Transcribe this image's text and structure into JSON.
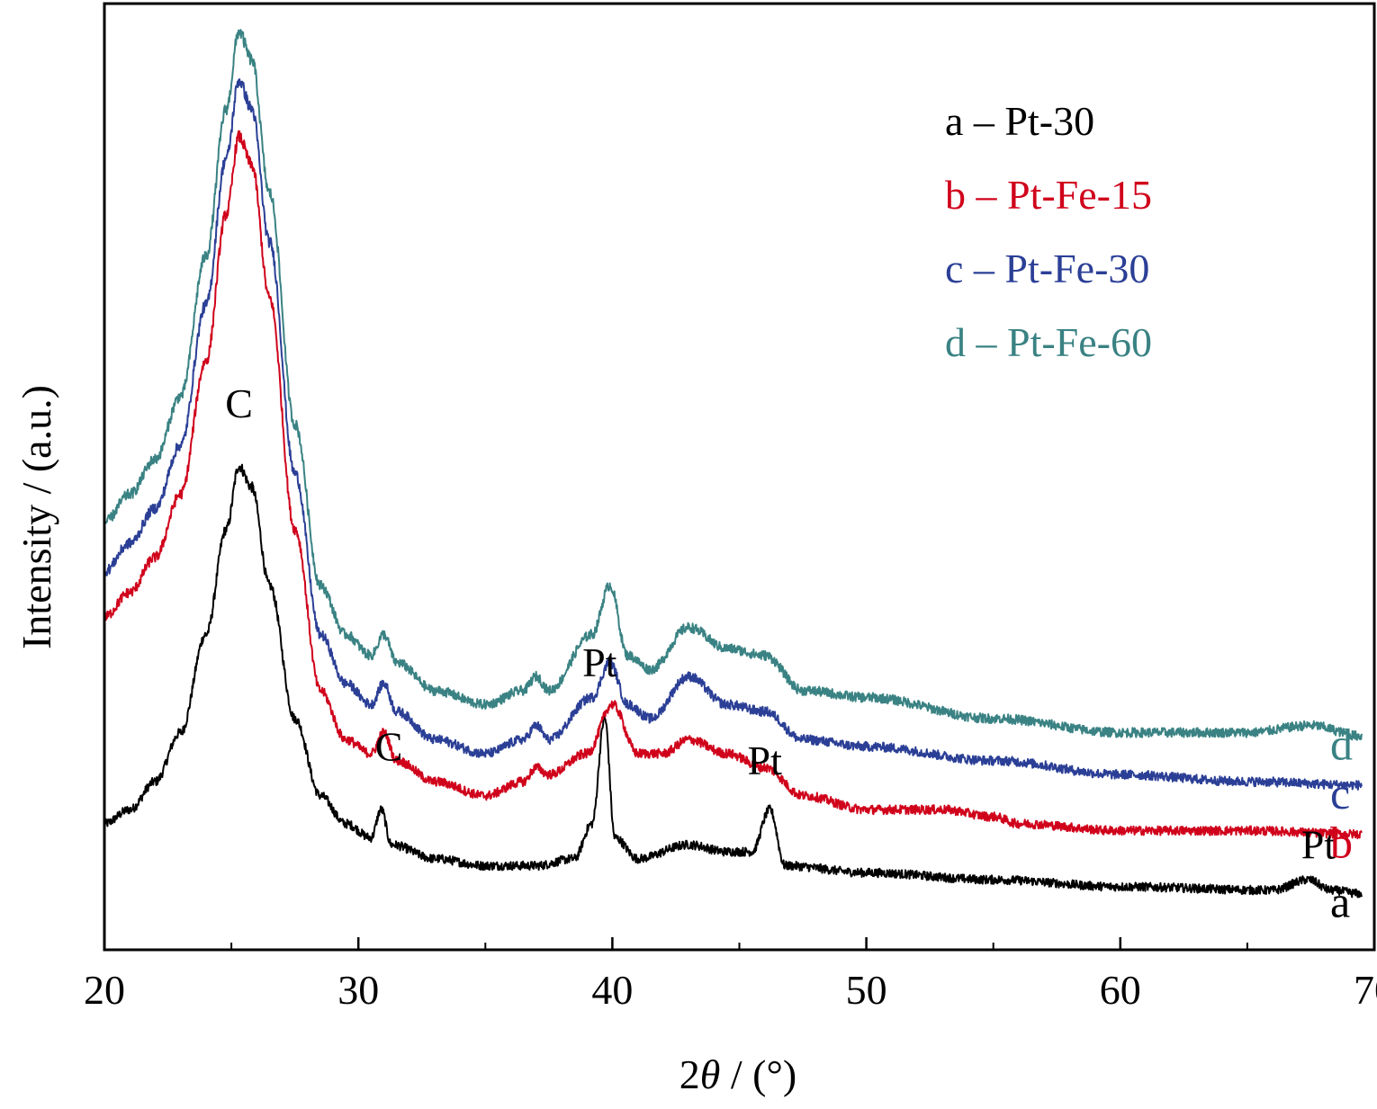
{
  "chart_data": {
    "type": "line",
    "xlabel_prefix": "2",
    "xlabel_symbol": "θ",
    "xlabel_suffix": " / (°)",
    "ylabel": "Intensity / (a.u.)",
    "xlim": [
      20,
      70
    ],
    "xticks": [
      20,
      30,
      40,
      50,
      60,
      70
    ],
    "x_minor_step": 5,
    "yticks_shown": false,
    "grid": false,
    "legend_position": "top-right",
    "legend": [
      {
        "text": "a – Pt-30",
        "series": "a"
      },
      {
        "text": "b – Pt-Fe-15",
        "series": "b"
      },
      {
        "text": "c – Pt-Fe-30",
        "series": "c"
      },
      {
        "text": "d – Pt-Fe-60",
        "series": "d"
      }
    ],
    "series": [
      {
        "name": "a",
        "label": "a",
        "color": "#000000",
        "x_end": 69.5,
        "points": [
          [
            20,
            0.18
          ],
          [
            21,
            0.2
          ],
          [
            22,
            0.24
          ],
          [
            23,
            0.31
          ],
          [
            24,
            0.45
          ],
          [
            24.8,
            0.6
          ],
          [
            25.3,
            0.69
          ],
          [
            25.8,
            0.66
          ],
          [
            26.5,
            0.52
          ],
          [
            27.5,
            0.33
          ],
          [
            28.5,
            0.22
          ],
          [
            29.5,
            0.18
          ],
          [
            30.5,
            0.16
          ],
          [
            30.9,
            0.2
          ],
          [
            31.3,
            0.15
          ],
          [
            33,
            0.13
          ],
          [
            35,
            0.12
          ],
          [
            37,
            0.12
          ],
          [
            38.5,
            0.13
          ],
          [
            39.2,
            0.18
          ],
          [
            39.7,
            0.33
          ],
          [
            40.1,
            0.16
          ],
          [
            41,
            0.13
          ],
          [
            43,
            0.15
          ],
          [
            44.5,
            0.14
          ],
          [
            45.5,
            0.14
          ],
          [
            46.2,
            0.2
          ],
          [
            46.8,
            0.12
          ],
          [
            50,
            0.11
          ],
          [
            55,
            0.1
          ],
          [
            60,
            0.09
          ],
          [
            66,
            0.085
          ],
          [
            67.4,
            0.1
          ],
          [
            68.3,
            0.085
          ],
          [
            69.5,
            0.08
          ]
        ]
      },
      {
        "name": "b",
        "label": "b",
        "color": "#d0021b",
        "x_end": 69.5,
        "points": [
          [
            20,
            0.475
          ],
          [
            21,
            0.51
          ],
          [
            22,
            0.56
          ],
          [
            23,
            0.65
          ],
          [
            24,
            0.84
          ],
          [
            24.8,
            1.05
          ],
          [
            25.3,
            1.16
          ],
          [
            25.8,
            1.12
          ],
          [
            26.5,
            0.93
          ],
          [
            27.5,
            0.6
          ],
          [
            28.5,
            0.37
          ],
          [
            29.5,
            0.3
          ],
          [
            30.5,
            0.28
          ],
          [
            31,
            0.31
          ],
          [
            31.5,
            0.27
          ],
          [
            33,
            0.24
          ],
          [
            35,
            0.22
          ],
          [
            36.5,
            0.24
          ],
          [
            37,
            0.26
          ],
          [
            37.5,
            0.25
          ],
          [
            39,
            0.28
          ],
          [
            40,
            0.35
          ],
          [
            41,
            0.28
          ],
          [
            42,
            0.28
          ],
          [
            43,
            0.3
          ],
          [
            44.5,
            0.28
          ],
          [
            46,
            0.26
          ],
          [
            47.5,
            0.22
          ],
          [
            50,
            0.2
          ],
          [
            53,
            0.2
          ],
          [
            55,
            0.19
          ],
          [
            56,
            0.18
          ],
          [
            60,
            0.17
          ],
          [
            65,
            0.17
          ],
          [
            69.5,
            0.165
          ]
        ]
      },
      {
        "name": "c",
        "label": "c",
        "color": "#2b3f96",
        "x_end": 69.5,
        "points": [
          [
            20,
            0.54
          ],
          [
            21,
            0.58
          ],
          [
            22,
            0.63
          ],
          [
            23,
            0.72
          ],
          [
            24,
            0.92
          ],
          [
            24.8,
            1.13
          ],
          [
            25.3,
            1.24
          ],
          [
            25.8,
            1.2
          ],
          [
            26.5,
            1.01
          ],
          [
            27.5,
            0.68
          ],
          [
            28.5,
            0.45
          ],
          [
            29.5,
            0.38
          ],
          [
            30.5,
            0.35
          ],
          [
            31,
            0.38
          ],
          [
            31.5,
            0.34
          ],
          [
            33,
            0.3
          ],
          [
            35,
            0.28
          ],
          [
            36.5,
            0.3
          ],
          [
            37,
            0.32
          ],
          [
            37.5,
            0.3
          ],
          [
            39.2,
            0.36
          ],
          [
            39.9,
            0.41
          ],
          [
            40.6,
            0.35
          ],
          [
            41.5,
            0.33
          ],
          [
            43,
            0.39
          ],
          [
            44.5,
            0.35
          ],
          [
            46,
            0.34
          ],
          [
            47.5,
            0.3
          ],
          [
            50,
            0.29
          ],
          [
            55,
            0.27
          ],
          [
            60,
            0.25
          ],
          [
            65,
            0.24
          ],
          [
            69.5,
            0.235
          ]
        ]
      },
      {
        "name": "d",
        "label": "d",
        "color": "#3a8283",
        "x_end": 69.5,
        "points": [
          [
            20,
            0.61
          ],
          [
            21,
            0.65
          ],
          [
            22,
            0.7
          ],
          [
            23,
            0.79
          ],
          [
            24,
            0.99
          ],
          [
            24.8,
            1.2
          ],
          [
            25.3,
            1.31
          ],
          [
            25.8,
            1.27
          ],
          [
            26.5,
            1.08
          ],
          [
            27.5,
            0.75
          ],
          [
            28.5,
            0.52
          ],
          [
            29.5,
            0.45
          ],
          [
            30.5,
            0.42
          ],
          [
            31,
            0.45
          ],
          [
            31.5,
            0.41
          ],
          [
            33,
            0.37
          ],
          [
            35,
            0.35
          ],
          [
            36.5,
            0.37
          ],
          [
            37,
            0.39
          ],
          [
            37.5,
            0.37
          ],
          [
            39.2,
            0.45
          ],
          [
            39.9,
            0.52
          ],
          [
            40.6,
            0.42
          ],
          [
            41.5,
            0.4
          ],
          [
            43,
            0.46
          ],
          [
            44.5,
            0.43
          ],
          [
            46,
            0.42
          ],
          [
            47.5,
            0.37
          ],
          [
            50,
            0.36
          ],
          [
            55,
            0.33
          ],
          [
            60,
            0.31
          ],
          [
            65,
            0.31
          ],
          [
            67.5,
            0.32
          ],
          [
            69.5,
            0.305
          ]
        ]
      }
    ],
    "annotations": [
      {
        "text": "C",
        "x": 25.3,
        "y": 0.76
      },
      {
        "text": "C",
        "x": 31.2,
        "y": 0.27
      },
      {
        "text": "Pt",
        "x": 39.5,
        "y": 0.39
      },
      {
        "text": "Pt",
        "x": 46.0,
        "y": 0.25
      },
      {
        "text": "Pt",
        "x": 67.8,
        "y": 0.13
      }
    ]
  }
}
